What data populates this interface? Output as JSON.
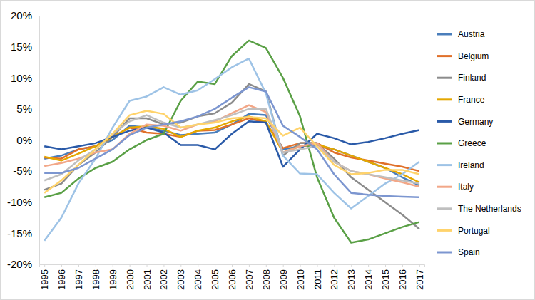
{
  "chart_data": {
    "type": "line",
    "categories": [
      "1995",
      "1996",
      "1997",
      "1998",
      "1999",
      "2000",
      "2001",
      "2002",
      "2003",
      "2004",
      "2005",
      "2006",
      "2007",
      "2008",
      "2009",
      "2010",
      "2011",
      "2012",
      "2013",
      "2014",
      "2015",
      "2016",
      "2017"
    ],
    "ylim": [
      -20,
      20
    ],
    "yticks": [
      {
        "value": -20,
        "label": "-20%"
      },
      {
        "value": -15,
        "label": "-15%"
      },
      {
        "value": -10,
        "label": "-10%"
      },
      {
        "value": -5,
        "label": "-5%"
      },
      {
        "value": 0,
        "label": "0%"
      },
      {
        "value": 5,
        "label": "5%"
      },
      {
        "value": 10,
        "label": "10%"
      },
      {
        "value": 15,
        "label": "15%"
      },
      {
        "value": 20,
        "label": "20%"
      }
    ],
    "grid": false,
    "legend": "right",
    "series": [
      {
        "name": "Austria",
        "color": "#4a7ebb",
        "values": [
          -3,
          -2.5,
          -1.5,
          -1,
          0,
          2.3,
          2,
          1.5,
          0.8,
          1,
          1.2,
          2.5,
          4.2,
          4,
          -1.5,
          -1,
          -0.8,
          -1.5,
          -2.5,
          -3.5,
          -4.5,
          -6,
          -7.3
        ]
      },
      {
        "name": "Belgium",
        "color": "#e0702a",
        "values": [
          -2.8,
          -3,
          -1.5,
          -1,
          0.5,
          2,
          1.2,
          1,
          0.5,
          1.5,
          1.6,
          2.5,
          3.5,
          2.8,
          -1.3,
          -0.5,
          -0.5,
          -2,
          -2.8,
          -3.3,
          -3.8,
          -4.3,
          -5
        ]
      },
      {
        "name": "Finland",
        "color": "#8c8c8c",
        "values": [
          -8,
          -7,
          -4,
          -2,
          0.5,
          3.5,
          3.5,
          2.5,
          2.8,
          3.8,
          4.3,
          6,
          9,
          7.8,
          -2.5,
          -0.5,
          -0.5,
          -3,
          -6,
          -8,
          -10,
          -12,
          -14.3
        ]
      },
      {
        "name": "France",
        "color": "#e4a700",
        "values": [
          -2.7,
          -3.3,
          -2.2,
          -1,
          0.5,
          2,
          2.2,
          1.8,
          0.5,
          1.5,
          2,
          3,
          3.8,
          3,
          -2,
          -1,
          -0.7,
          -1.5,
          -2.5,
          -3.5,
          -4.5,
          -5.5,
          -6.8
        ]
      },
      {
        "name": "Germany",
        "color": "#2a5aa8",
        "values": [
          -1,
          -1.5,
          -1,
          -0.5,
          0.5,
          1.5,
          2,
          1.2,
          -0.8,
          -0.8,
          -1.5,
          1,
          3,
          2.8,
          -4.3,
          -1.5,
          1,
          0.3,
          -0.7,
          -0.3,
          0.3,
          1,
          1.6
        ]
      },
      {
        "name": "Greece",
        "color": "#5aa046",
        "values": [
          -9.2,
          -8.5,
          -6.2,
          -4.5,
          -3.5,
          -1.5,
          0,
          1,
          6.3,
          9.4,
          9,
          13.5,
          16,
          14.8,
          10,
          3.8,
          -6,
          -12.5,
          -16.5,
          -16,
          -15,
          -14,
          -13.2
        ]
      },
      {
        "name": "Ireland",
        "color": "#9ec3e6",
        "values": [
          -16.2,
          -12.5,
          -7,
          -3,
          2,
          6.3,
          7,
          8.5,
          7.3,
          8,
          9.8,
          11.7,
          13.1,
          7.5,
          -2.5,
          -5.4,
          -5.5,
          -8.5,
          -11,
          -9,
          -7,
          -5.5,
          -3.5
        ]
      },
      {
        "name": "Italy",
        "color": "#f2a788",
        "values": [
          -4.2,
          -3.7,
          -3,
          -2,
          -1.5,
          1,
          2.5,
          2.3,
          1.5,
          2.5,
          3,
          4.3,
          5.6,
          4.5,
          -2,
          -1,
          -0.5,
          -3.5,
          -5,
          -5.5,
          -6.2,
          -6.8,
          -7.5
        ]
      },
      {
        "name": "The Netherlands",
        "color": "#bfbfbf",
        "values": [
          -6.5,
          -5.5,
          -3.3,
          -1.5,
          1,
          3,
          4,
          2.8,
          2,
          2.5,
          3.2,
          4,
          5,
          5,
          -2,
          -1.5,
          -1,
          -3.5,
          -5,
          -5.5,
          -6,
          -6.5,
          -7
        ]
      },
      {
        "name": "Portugal",
        "color": "#ffd36b",
        "values": [
          -8.5,
          -6.5,
          -4,
          -1.5,
          1,
          4,
          4.7,
          4.2,
          2,
          2.5,
          2.8,
          3.5,
          3.7,
          3.5,
          0.7,
          2,
          -1,
          -4,
          -5.5,
          -5.3,
          -4.8,
          -4.8,
          -5.5
        ]
      },
      {
        "name": "Spain",
        "color": "#7c96d0",
        "values": [
          -5.3,
          -5.3,
          -4.5,
          -3,
          -1.5,
          0.8,
          2,
          2.5,
          3,
          3.8,
          5,
          6.8,
          8.5,
          7.8,
          2.3,
          0.5,
          -1.5,
          -5.5,
          -8.5,
          -8.8,
          -9,
          -9.1,
          -9.2
        ]
      }
    ]
  }
}
